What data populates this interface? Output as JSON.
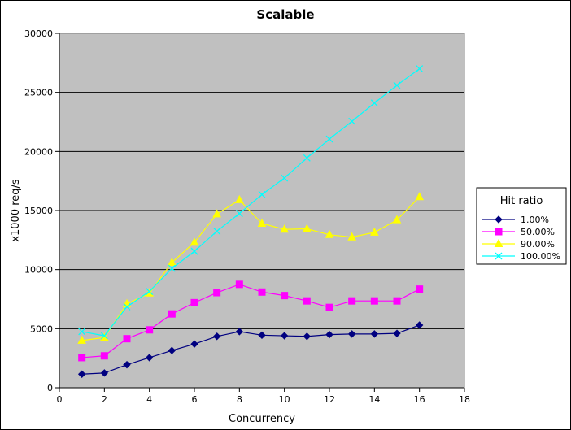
{
  "chart_data": {
    "type": "line",
    "title": "Scalable",
    "xlabel": "Concurrency",
    "ylabel": "x1000 req/s",
    "xlim": [
      0,
      18
    ],
    "ylim": [
      0,
      30000
    ],
    "xticks": [
      0,
      2,
      4,
      6,
      8,
      10,
      12,
      14,
      16,
      18
    ],
    "yticks": [
      0,
      5000,
      10000,
      15000,
      20000,
      25000,
      30000
    ],
    "grid": "horizontal",
    "plot_background": "#c0c0c0",
    "legend": {
      "title": "Hit ratio",
      "placement": "right"
    },
    "x": [
      1,
      2,
      3,
      4,
      5,
      6,
      7,
      8,
      9,
      10,
      11,
      12,
      13,
      14,
      15,
      16
    ],
    "series": [
      {
        "name": "1.00%",
        "color": "#000080",
        "marker": "diamond",
        "values": [
          1150,
          1250,
          1950,
          2550,
          3150,
          3700,
          4350,
          4750,
          4450,
          4400,
          4350,
          4500,
          4550,
          4550,
          4600,
          5300
        ]
      },
      {
        "name": "50.00%",
        "color": "#ff00ff",
        "marker": "square",
        "values": [
          2550,
          2700,
          4150,
          4900,
          6250,
          7200,
          8050,
          8750,
          8100,
          7800,
          7350,
          6800,
          7350,
          7350,
          7350,
          8350
        ]
      },
      {
        "name": "90.00%",
        "color": "#ffff00",
        "marker": "triangle",
        "values": [
          4000,
          4250,
          7100,
          8000,
          10600,
          12300,
          14700,
          15900,
          13900,
          13400,
          13450,
          12950,
          12750,
          13150,
          14200,
          16150
        ]
      },
      {
        "name": "100.00%",
        "color": "#00ffff",
        "marker": "x",
        "values": [
          4750,
          4400,
          6850,
          8150,
          10100,
          11550,
          13250,
          14750,
          16350,
          17750,
          19450,
          21050,
          22550,
          24100,
          25600,
          27000
        ]
      }
    ]
  }
}
